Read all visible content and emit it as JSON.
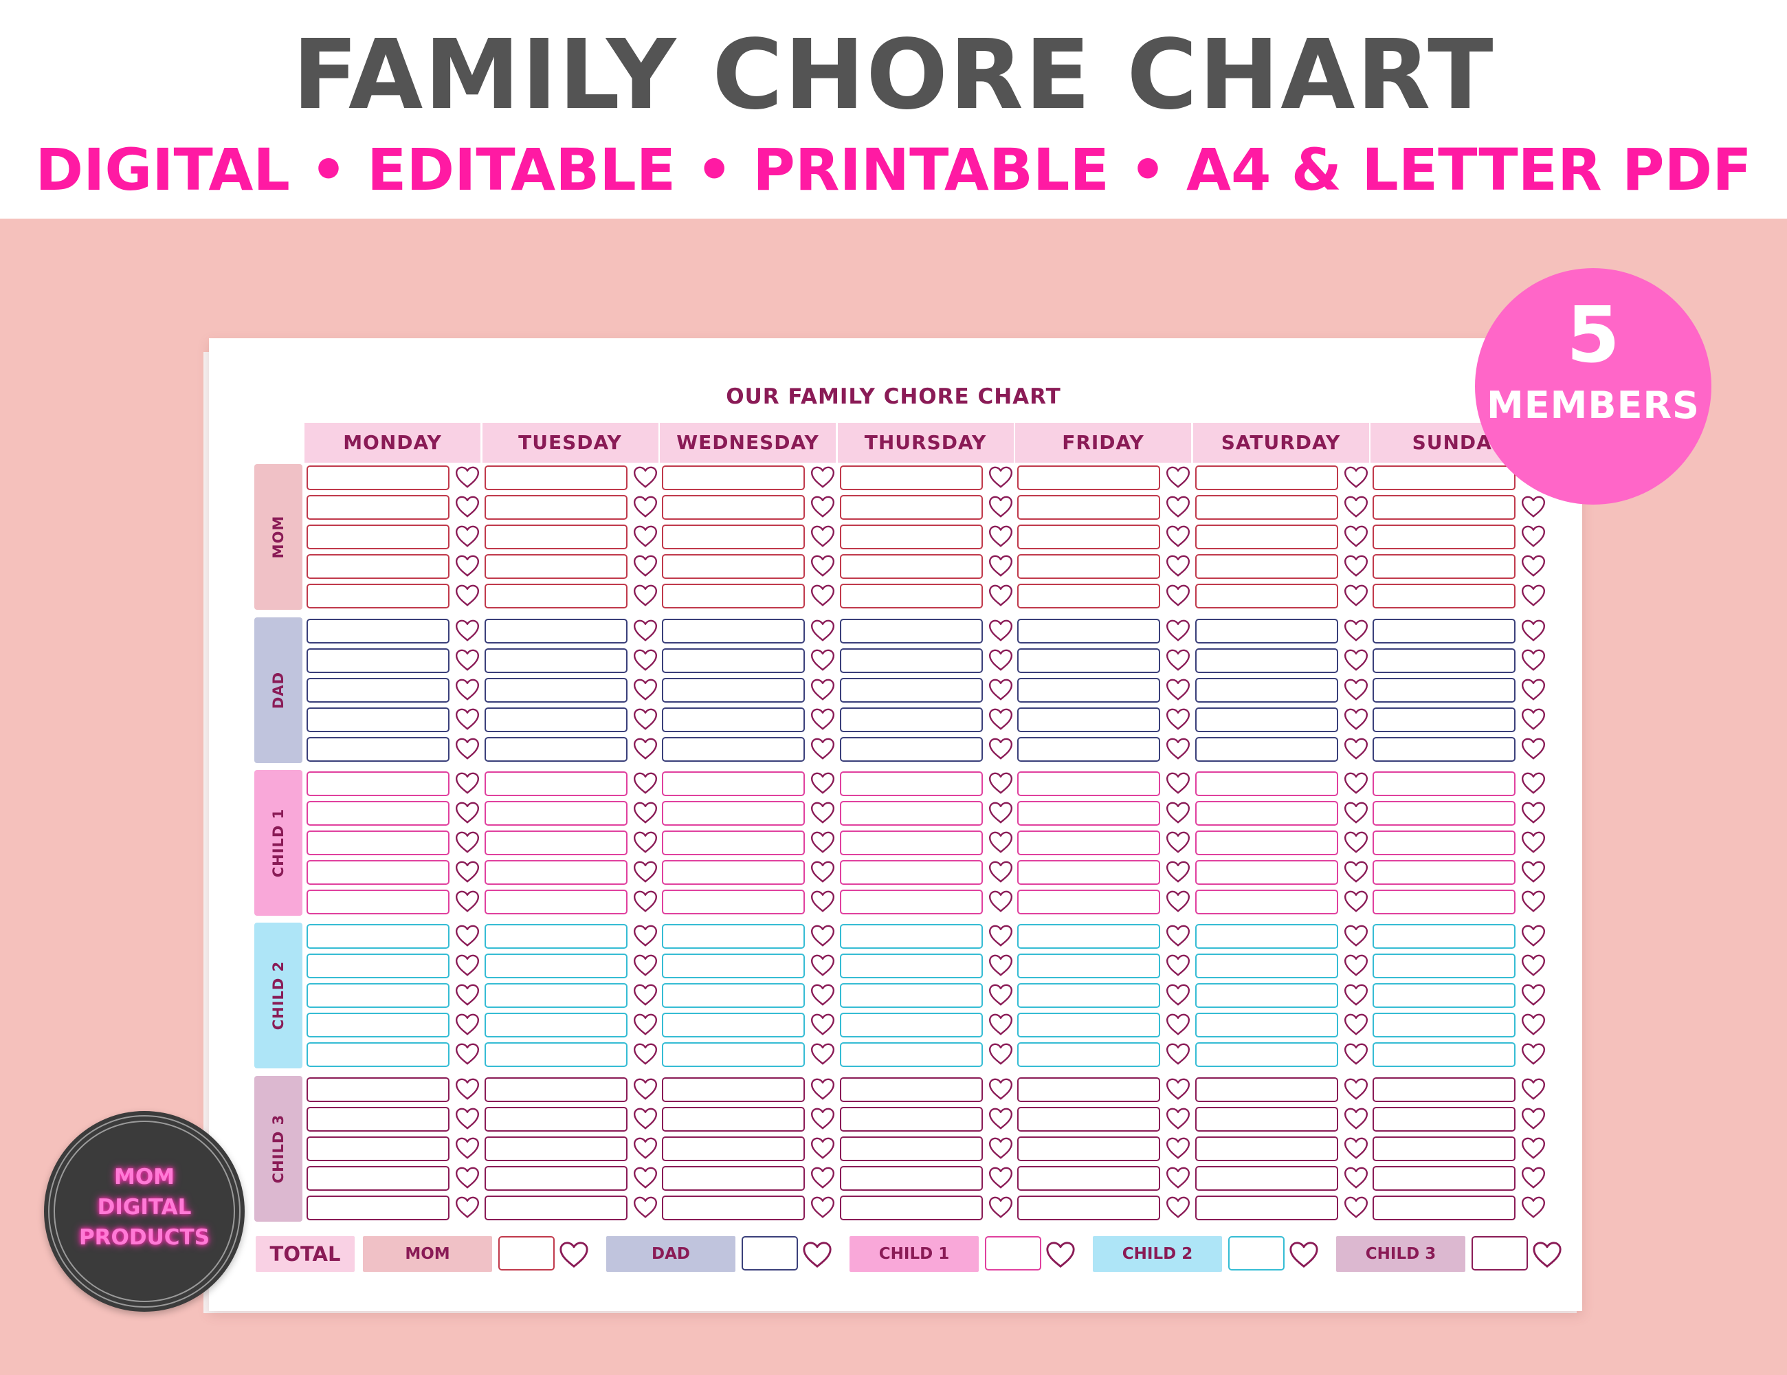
{
  "banner": {
    "title": "FAMILY CHORE CHART",
    "subtitle": "DIGITAL • EDITABLE • PRINTABLE • A4 & LETTER PDF"
  },
  "sheet": {
    "title": "OUR FAMILY CHORE CHART",
    "days": [
      "MONDAY",
      "TUESDAY",
      "WEDNESDAY",
      "THURSDAY",
      "FRIDAY",
      "SATURDAY",
      "SUNDAY"
    ],
    "members": [
      {
        "name": "MOM",
        "label_color": "#f0c1c6",
        "cell_border": "#c0394b",
        "rows": 5
      },
      {
        "name": "DAD",
        "label_color": "#c0c4dd",
        "cell_border": "#3a3f7a",
        "rows": 5
      },
      {
        "name": "CHILD 1",
        "label_color": "#f9a8d9",
        "cell_border": "#e0409e",
        "rows": 5
      },
      {
        "name": "CHILD 2",
        "label_color": "#aee5f7",
        "cell_border": "#35bcd4",
        "rows": 5
      },
      {
        "name": "CHILD 3",
        "label_color": "#dcb8d0",
        "cell_border": "#8a1b56",
        "rows": 5
      }
    ],
    "heart_color": "#8a1b56",
    "totals": {
      "label": "TOTAL",
      "label_color": "#f9d1e4",
      "items": [
        {
          "name": "MOM",
          "color": "#f0c1c6",
          "border": "#c0394b"
        },
        {
          "name": "DAD",
          "color": "#c0c4dd",
          "border": "#3a3f7a"
        },
        {
          "name": "CHILD 1",
          "color": "#f9a8d9",
          "border": "#e0409e"
        },
        {
          "name": "CHILD 2",
          "color": "#aee5f7",
          "border": "#35bcd4"
        },
        {
          "name": "CHILD 3",
          "color": "#dcb8d0",
          "border": "#8a1b56"
        }
      ]
    }
  },
  "badge": {
    "number": "5",
    "label": "MEMBERS"
  },
  "brand": {
    "line1": "MOM",
    "line2": "DIGITAL",
    "line3": "PRODUCTS"
  }
}
